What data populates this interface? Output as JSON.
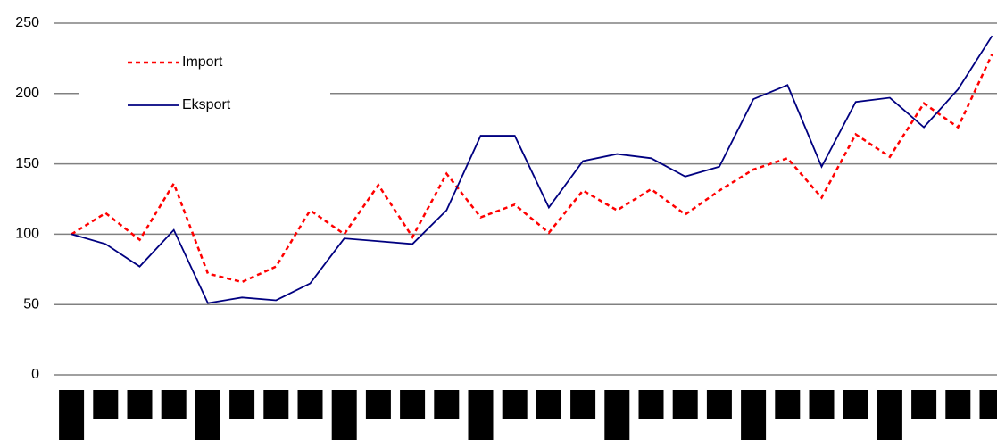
{
  "chart_data": {
    "type": "line",
    "categories": [
      null,
      null,
      null,
      null,
      null,
      null,
      null,
      null,
      null,
      null,
      null,
      null,
      null,
      null,
      null,
      null,
      null,
      null,
      null,
      null,
      null,
      null,
      null,
      null,
      null,
      null,
      null,
      null
    ],
    "series": [
      {
        "name": "Import",
        "color": "#ff0000",
        "dash": true,
        "values": [
          100,
          115,
          96,
          136,
          72,
          66,
          77,
          117,
          100,
          135,
          98,
          143,
          112,
          121,
          101,
          131,
          117,
          132,
          114,
          131,
          146,
          154,
          126,
          171,
          155,
          193,
          176,
          228
        ]
      },
      {
        "name": "Eksport",
        "color": "#000080",
        "dash": false,
        "values": [
          100,
          93,
          77,
          103,
          51,
          55,
          53,
          65,
          97,
          95,
          93,
          117,
          170,
          170,
          119,
          152,
          157,
          154,
          141,
          148,
          196,
          206,
          148,
          194,
          197,
          176,
          203,
          241
        ]
      }
    ],
    "ylim": [
      0,
      250
    ],
    "yticks": [
      0,
      50,
      100,
      150,
      200,
      250
    ],
    "grid": true,
    "legend": "upper left"
  }
}
